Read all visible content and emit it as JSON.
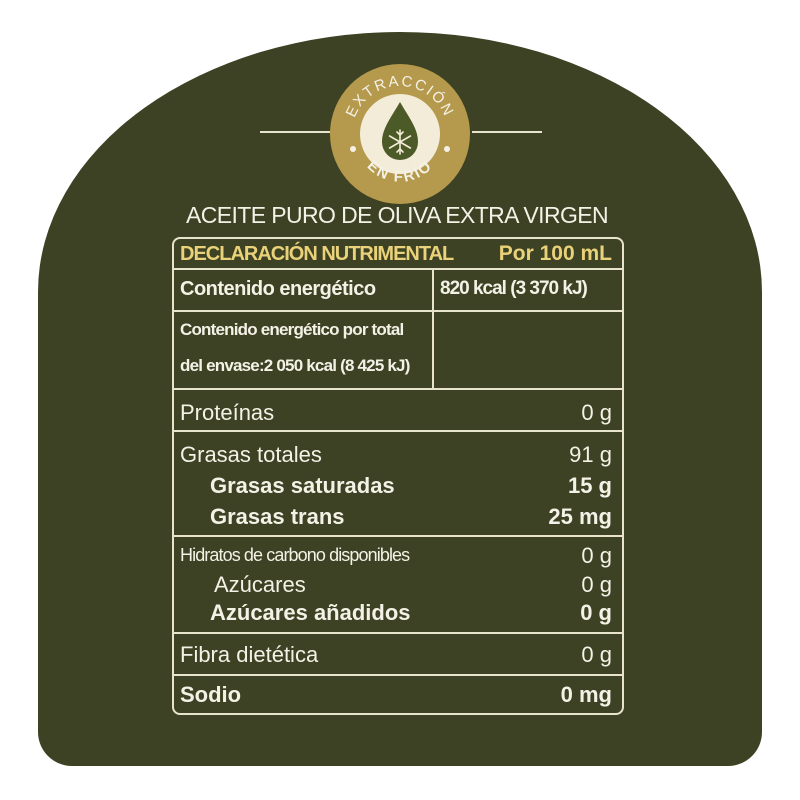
{
  "badge": {
    "top_text": "EXTRACCIÓN",
    "bottom_text": "EN FRÍO",
    "icon": "snowflake-drop-icon"
  },
  "title": "ACEITE PURO DE OLIVA EXTRA VIRGEN",
  "colors": {
    "background": "#3c4223",
    "gold": "#b5994c",
    "header_text": "#ead27a",
    "text": "#f4f1e6"
  },
  "table": {
    "header": {
      "label": "DECLARACIÓN NUTRIMENTAL",
      "per": "Por 100 mL"
    },
    "energy": {
      "label": "Contenido energético",
      "value": "820 kcal (3 370 kJ)"
    },
    "energy_total": {
      "line1": "Contenido energético por total",
      "line2": "del envase:2 050 kcal (8 425 kJ)"
    },
    "rows": [
      {
        "label": "Proteínas",
        "value": "0 g"
      },
      {
        "label": "Grasas totales",
        "value": "91 g"
      },
      {
        "label": "Grasas saturadas",
        "value": "15 g"
      },
      {
        "label": "Grasas trans",
        "value": "25 mg"
      },
      {
        "label": "Hidratos de carbono disponibles",
        "value": "0 g"
      },
      {
        "label": "Azúcares",
        "value": "0 g"
      },
      {
        "label": "Azúcares añadidos",
        "value": "0 g"
      },
      {
        "label": "Fibra dietética",
        "value": "0 g"
      },
      {
        "label": "Sodio",
        "value": "0 mg"
      }
    ]
  }
}
